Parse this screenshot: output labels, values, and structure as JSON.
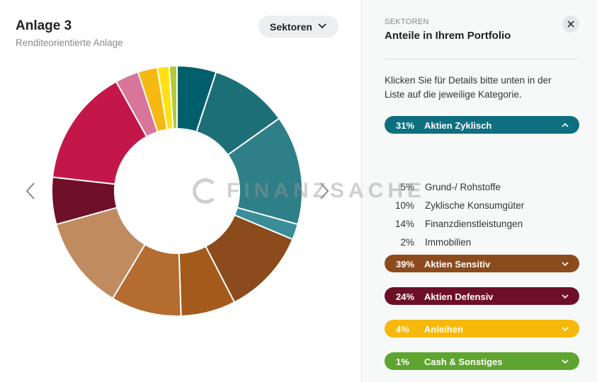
{
  "header": {
    "title": "Anlage 3",
    "subtitle": "Renditeorientierte Anlage",
    "dropdown": "Sektoren"
  },
  "watermark": "FINANZSACHE",
  "panel": {
    "kicker": "SEKTOREN",
    "title": "Anteile in Ihrem Portfolio",
    "intro": [
      "Klicken Sie für Details bitte unten in der",
      "Liste auf die jeweilige Kategorie."
    ],
    "categories": [
      {
        "value": 31,
        "label": "31%",
        "name": "Aktien Zyklisch",
        "color": "#0e6f80",
        "expanded": true,
        "items": [
          {
            "value": 5,
            "label": "5%",
            "name": "Grund-/ Rohstoffe",
            "color": "#005f6b"
          },
          {
            "value": 10,
            "label": "10%",
            "name": "Zyklische Konsumgüter",
            "color": "#1c6e77"
          },
          {
            "value": 14,
            "label": "14%",
            "name": "Finanzdienstleistungen",
            "color": "#2f7f88"
          },
          {
            "value": 2,
            "label": "2%",
            "name": "Immobilien",
            "color": "#3a8e98"
          }
        ]
      },
      {
        "value": 39,
        "label": "39%",
        "name": "Aktien Sensitiv",
        "color": "#8c4b1d",
        "segments": [
          11,
          7,
          9,
          12
        ],
        "segment_colors": [
          "#8b4b1c",
          "#a35a1a",
          "#b46c30",
          "#c08b5f"
        ]
      },
      {
        "value": 24,
        "label": "24%",
        "name": "Aktien Defensiv",
        "color": "#6d1027",
        "segments": [
          6,
          15,
          3
        ],
        "segment_colors": [
          "#6e1028",
          "#c3174a",
          "#d9749a"
        ]
      },
      {
        "value": 4,
        "label": "4%",
        "name": "Anleihen",
        "color": "#f7b80c",
        "segments": [
          2.5,
          1.5
        ],
        "segment_colors": [
          "#f5b912",
          "#ffe014"
        ]
      },
      {
        "value": 1,
        "label": "1%",
        "name": "Cash & Sonstiges",
        "color": "#5ea52f",
        "segments": [
          1
        ],
        "segment_colors": [
          "#b3c93a"
        ]
      }
    ]
  }
}
